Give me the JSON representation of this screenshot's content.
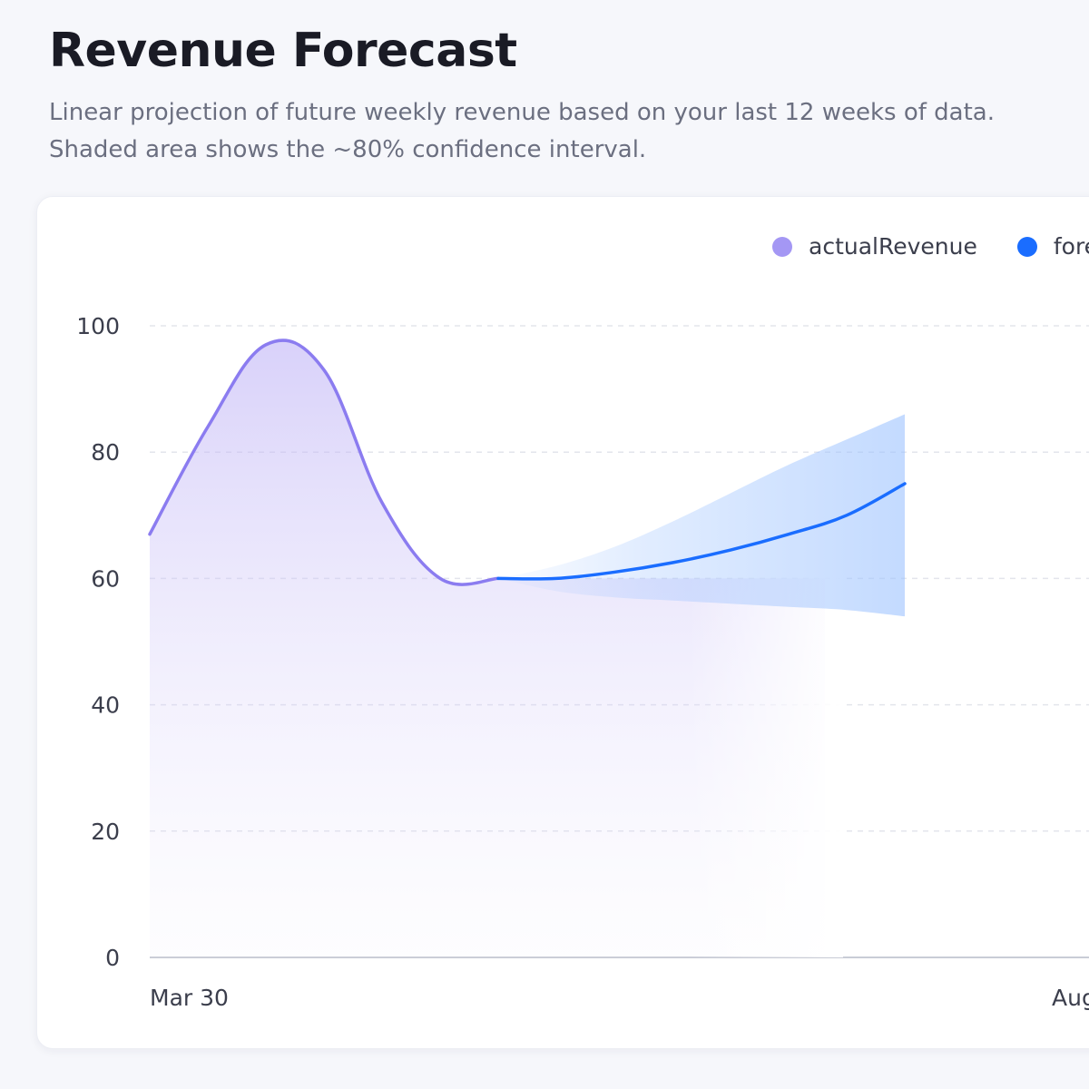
{
  "header": {
    "title": "Revenue Forecast",
    "subtitle_lines": [
      "Linear projection of future weekly revenue based on your last 12 weeks of data.",
      "Shaded area shows the ~80% confidence interval."
    ]
  },
  "colors": {
    "actual": "#8b7cf0",
    "forecast": "#1a6dff",
    "band": "#3d8bff"
  },
  "chart_data": {
    "type": "area",
    "title": "",
    "xlabel": "",
    "ylabel": "",
    "ylim": [
      0,
      100
    ],
    "yticks": [
      0,
      20,
      40,
      60,
      80,
      100
    ],
    "grid": true,
    "legend_position": "top-right",
    "x_tick_labels": [
      "Mar 30",
      "Aug"
    ],
    "legend": [
      "actualRevenue",
      "fore"
    ],
    "series": [
      {
        "name": "actualRevenue",
        "x": [
          0,
          2,
          4,
          6,
          8,
          10,
          12
        ],
        "values": [
          67,
          84,
          97,
          93,
          72,
          60,
          60
        ]
      },
      {
        "name": "forecastRevenue",
        "x": [
          12,
          14,
          16,
          18,
          20,
          22,
          24,
          26
        ],
        "values": [
          60,
          60,
          61,
          62.5,
          64.5,
          67,
          70,
          75
        ]
      }
    ],
    "confidence_band": {
      "x": [
        12,
        14,
        16,
        18,
        20,
        22,
        24,
        26
      ],
      "lower": [
        60,
        58,
        57,
        56.5,
        56,
        55.5,
        55,
        54
      ],
      "upper": [
        60,
        62,
        65,
        69,
        73.5,
        78,
        82,
        86
      ]
    }
  }
}
